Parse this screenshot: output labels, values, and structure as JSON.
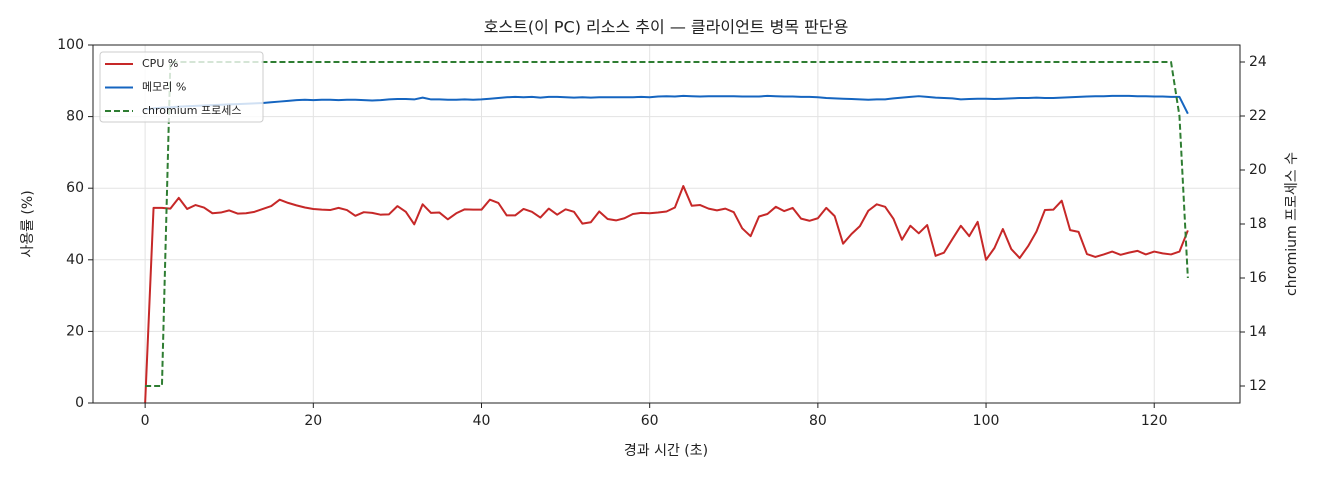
{
  "chart_data": {
    "type": "line",
    "title": "호스트(이 PC) 리소스 추이 — 클라이언트 병목 판단용",
    "xlabel": "경과 시간 (초)",
    "ylabel": "사용률 (%)",
    "y2label": "chromium 프로세스 수",
    "x": [
      0,
      1,
      2,
      3,
      4,
      5,
      6,
      7,
      8,
      9,
      10,
      11,
      12,
      13,
      14,
      15,
      16,
      17,
      18,
      19,
      20,
      21,
      22,
      23,
      24,
      25,
      26,
      27,
      28,
      29,
      30,
      31,
      32,
      33,
      34,
      35,
      36,
      37,
      38,
      39,
      40,
      41,
      42,
      43,
      44,
      45,
      46,
      47,
      48,
      49,
      50,
      51,
      52,
      53,
      54,
      55,
      56,
      57,
      58,
      59,
      60,
      61,
      62,
      63,
      64,
      65,
      66,
      67,
      68,
      69,
      70,
      71,
      72,
      73,
      74,
      75,
      76,
      77,
      78,
      79,
      80,
      81,
      82,
      83,
      84,
      85,
      86,
      87,
      88,
      89,
      90,
      91,
      92,
      93,
      94,
      95,
      96,
      97,
      98,
      99,
      100,
      101,
      102,
      103,
      104,
      105,
      106,
      107,
      108,
      109,
      110,
      111,
      112,
      113,
      114,
      115,
      116,
      117,
      118,
      119,
      120,
      121,
      122,
      123,
      124
    ],
    "series": [
      {
        "name": "CPU %",
        "color": "#c62828",
        "dashed": false,
        "values": [
          0,
          54.5,
          54.5,
          54.3,
          57.3,
          54.2,
          55.3,
          54.6,
          53,
          53.2,
          53.8,
          52.9,
          53,
          53.4,
          54.2,
          55,
          56.8,
          55.9,
          55.2,
          54.6,
          54.2,
          54,
          53.9,
          54.5,
          53.9,
          52.3,
          53.3,
          53.1,
          52.6,
          52.7,
          55,
          53.4,
          49.9,
          55.5,
          53.1,
          53.2,
          51.3,
          53,
          54.1,
          54,
          54,
          56.8,
          55.9,
          52.4,
          52.4,
          54.2,
          53.4,
          51.8,
          54.3,
          52.6,
          54.1,
          53.4,
          50.1,
          50.5,
          53.5,
          51.4,
          51,
          51.6,
          52.8,
          53.1,
          53,
          53.2,
          53.5,
          54.6,
          60.6,
          55.1,
          55.3,
          54.3,
          53.8,
          54.3,
          53.3,
          48.8,
          46.6,
          52.1,
          52.8,
          54.8,
          53.6,
          54.5,
          51.5,
          50.9,
          51.6,
          54.5,
          52.2,
          44.5,
          47.2,
          49.4,
          53.7,
          55.5,
          54.8,
          51.4,
          45.6,
          49.5,
          47.4,
          49.7,
          41.1,
          42,
          45.8,
          49.5,
          46.6,
          50.6,
          40,
          43.3,
          48.6,
          43,
          40.5,
          43.8,
          47.9,
          53.9,
          54,
          56.5,
          48.3,
          47.8,
          41.6,
          40.8,
          41.5,
          42.3,
          41.4,
          42,
          42.5,
          41.5,
          42.3,
          41.8,
          41.5,
          42.3,
          48.2
        ]
      },
      {
        "name": "메모리 %",
        "color": "#1565c0",
        "dashed": false,
        "values": [
          82.0,
          82.3,
          82.5,
          82.6,
          82.8,
          82.9,
          83.0,
          83.1,
          83.2,
          83.3,
          83.4,
          83.5,
          83.6,
          83.7,
          83.8,
          84.0,
          84.2,
          84.4,
          84.6,
          84.7,
          84.6,
          84.7,
          84.7,
          84.6,
          84.7,
          84.7,
          84.6,
          84.5,
          84.6,
          84.8,
          84.9,
          84.9,
          84.8,
          85.3,
          84.8,
          84.8,
          84.7,
          84.7,
          84.8,
          84.7,
          84.8,
          85.0,
          85.2,
          85.4,
          85.5,
          85.4,
          85.5,
          85.3,
          85.5,
          85.5,
          85.4,
          85.3,
          85.4,
          85.3,
          85.4,
          85.4,
          85.4,
          85.4,
          85.4,
          85.5,
          85.4,
          85.6,
          85.7,
          85.6,
          85.8,
          85.7,
          85.6,
          85.7,
          85.7,
          85.7,
          85.7,
          85.6,
          85.6,
          85.6,
          85.8,
          85.7,
          85.6,
          85.6,
          85.5,
          85.5,
          85.4,
          85.2,
          85.1,
          85.0,
          84.9,
          84.8,
          84.7,
          84.8,
          84.8,
          85.1,
          85.3,
          85.5,
          85.7,
          85.5,
          85.3,
          85.2,
          85.1,
          84.8,
          84.9,
          85.0,
          85.0,
          84.9,
          85.0,
          85.1,
          85.2,
          85.2,
          85.3,
          85.2,
          85.2,
          85.3,
          85.4,
          85.5,
          85.6,
          85.7,
          85.7,
          85.8,
          85.8,
          85.8,
          85.7,
          85.7,
          85.6,
          85.6,
          85.5,
          85.5,
          80.8
        ]
      },
      {
        "name": "chromium 프로세스",
        "color": "#2e7d32",
        "dashed": true,
        "axis": "y2",
        "values": [
          12,
          12,
          12,
          24,
          24,
          24,
          24,
          24,
          24,
          24,
          24,
          24,
          24,
          24,
          24,
          24,
          24,
          24,
          24,
          24,
          24,
          24,
          24,
          24,
          24,
          24,
          24,
          24,
          24,
          24,
          24,
          24,
          24,
          24,
          24,
          24,
          24,
          24,
          24,
          24,
          24,
          24,
          24,
          24,
          24,
          24,
          24,
          24,
          24,
          24,
          24,
          24,
          24,
          24,
          24,
          24,
          24,
          24,
          24,
          24,
          24,
          24,
          24,
          24,
          24,
          24,
          24,
          24,
          24,
          24,
          24,
          24,
          24,
          24,
          24,
          24,
          24,
          24,
          24,
          24,
          24,
          24,
          24,
          24,
          24,
          24,
          24,
          24,
          24,
          24,
          24,
          24,
          24,
          24,
          24,
          24,
          24,
          24,
          24,
          24,
          24,
          24,
          24,
          24,
          24,
          24,
          24,
          24,
          24,
          24,
          24,
          24,
          24,
          24,
          24,
          24,
          24,
          24,
          24,
          24,
          24,
          24,
          24,
          22,
          16
        ]
      }
    ],
    "xlim": [
      -6.2,
      130.2
    ],
    "xticks": [
      0,
      20,
      40,
      60,
      80,
      100,
      120
    ],
    "ylim": [
      0,
      100
    ],
    "yticks": [
      0,
      20,
      40,
      60,
      80,
      100
    ],
    "y2lim": [
      11.37,
      24.63
    ],
    "y2ticks": [
      12,
      14,
      16,
      18,
      20,
      22,
      24
    ],
    "grid": true,
    "legend": "upper-left"
  }
}
